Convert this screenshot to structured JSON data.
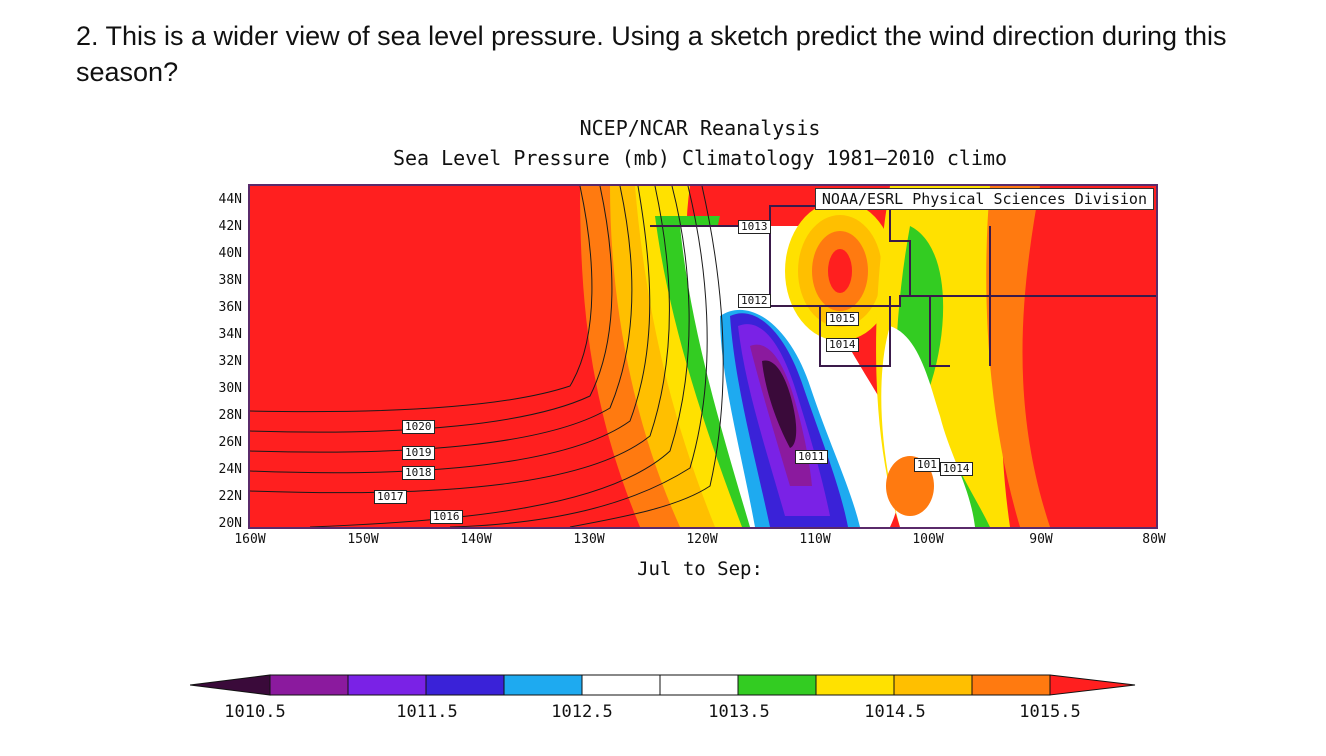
{
  "question": {
    "text": "2. This is a wider view of sea level pressure.  Using a sketch predict the wind direction during this season?"
  },
  "figure": {
    "title_line1": "NCEP/NCAR Reanalysis",
    "title_line2": "Sea Level Pressure (mb) Climatology 1981–2010 climo",
    "credit": "NOAA/ESRL Physical Sciences Division",
    "season": "Jul to Sep:",
    "lat_labels": [
      "44N",
      "42N",
      "40N",
      "38N",
      "36N",
      "34N",
      "32N",
      "30N",
      "28N",
      "26N",
      "24N",
      "22N",
      "20N"
    ],
    "lon_labels": [
      "160W",
      "150W",
      "140W",
      "130W",
      "120W",
      "110W",
      "100W",
      "90W",
      "80W"
    ],
    "contour_labels": [
      "1013",
      "1012",
      "1015",
      "1014",
      "1011",
      "1014",
      "1020",
      "1019",
      "1018",
      "1017",
      "1016",
      "101"
    ],
    "colorbar": {
      "tick_labels": [
        "1010.5",
        "1011.5",
        "1012.5",
        "1013.5",
        "1014.5",
        "1015.5"
      ],
      "colors": [
        "#3a0a3a",
        "#8b1a9e",
        "#7a22e6",
        "#3a22d8",
        "#1eaaf0",
        "#ffffff",
        "#ffffff",
        "#33cc22",
        "#ffe100",
        "#ffbf00",
        "#ff7a10",
        "#ff1f1f"
      ]
    }
  }
}
